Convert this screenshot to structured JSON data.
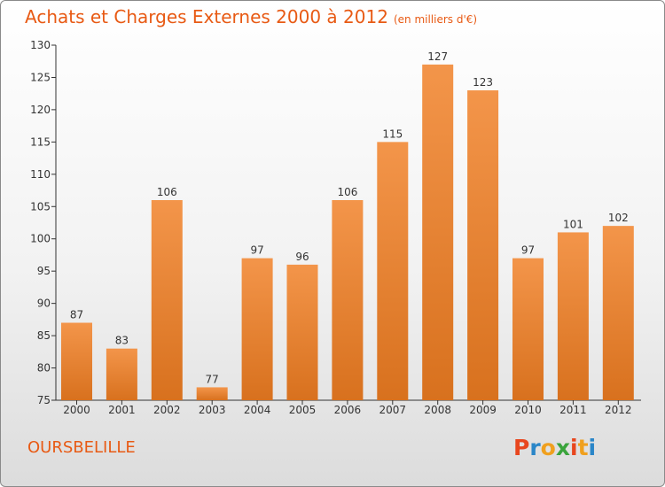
{
  "title": "Achats et Charges Externes 2000 à 2012",
  "unit_note": "(en milliers d'€)",
  "commune": "OURSBELILLE",
  "logo": {
    "text": "Proxiti",
    "letter_colors": [
      "#e8461e",
      "#2a86c8",
      "#f0a01e",
      "#3aa43c",
      "#e8461e",
      "#f0a01e",
      "#2a86c8"
    ]
  },
  "colors": {
    "bar": "#f3954a",
    "bar_dark": "#d8711e",
    "title": "#e85a14",
    "axis": "#333333"
  },
  "chart_data": {
    "type": "bar",
    "categories": [
      "2000",
      "2001",
      "2002",
      "2003",
      "2004",
      "2005",
      "2006",
      "2007",
      "2008",
      "2009",
      "2010",
      "2011",
      "2012"
    ],
    "values": [
      87,
      83,
      106,
      77,
      97,
      96,
      106,
      115,
      127,
      123,
      97,
      101,
      102
    ],
    "ylim": [
      75,
      130
    ],
    "yticks": [
      75,
      80,
      85,
      90,
      95,
      100,
      105,
      110,
      115,
      120,
      125,
      130
    ],
    "grid": false,
    "title": "Achats et Charges Externes 2000 à 2012",
    "xlabel": "",
    "ylabel": ""
  }
}
